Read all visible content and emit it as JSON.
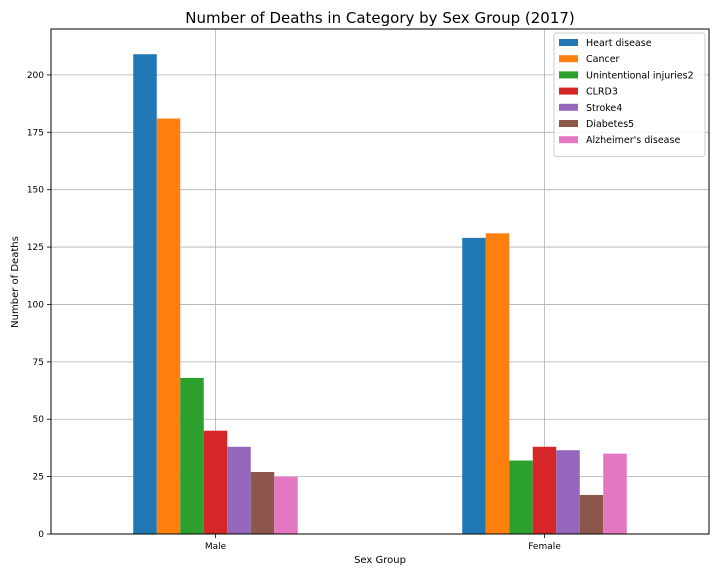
{
  "chart_data": {
    "type": "bar",
    "title": "Number of Deaths in Category by Sex Group (2017)",
    "xlabel": "Sex Group",
    "ylabel": "Number of Deaths",
    "categories": [
      "Male",
      "Female"
    ],
    "ylim": [
      0,
      220
    ],
    "yticks": [
      0,
      25,
      50,
      75,
      100,
      125,
      150,
      175,
      200
    ],
    "grid": true,
    "legend_position": "top-right",
    "series": [
      {
        "name": "Heart disease",
        "color": "#1f77b4",
        "values": [
          209,
          129
        ]
      },
      {
        "name": "Cancer",
        "color": "#ff7f0e",
        "values": [
          181,
          131
        ]
      },
      {
        "name": "Unintentional injuries2",
        "color": "#2ca02c",
        "values": [
          68,
          32
        ]
      },
      {
        "name": "CLRD3",
        "color": "#d62728",
        "values": [
          45,
          38
        ]
      },
      {
        "name": "Stroke4",
        "color": "#9467bd",
        "values": [
          38,
          36.5
        ]
      },
      {
        "name": "Diabetes5",
        "color": "#8c564b",
        "values": [
          27,
          17
        ]
      },
      {
        "name": "Alzheimer's disease",
        "color": "#e377c2",
        "values": [
          25,
          35
        ]
      }
    ]
  }
}
